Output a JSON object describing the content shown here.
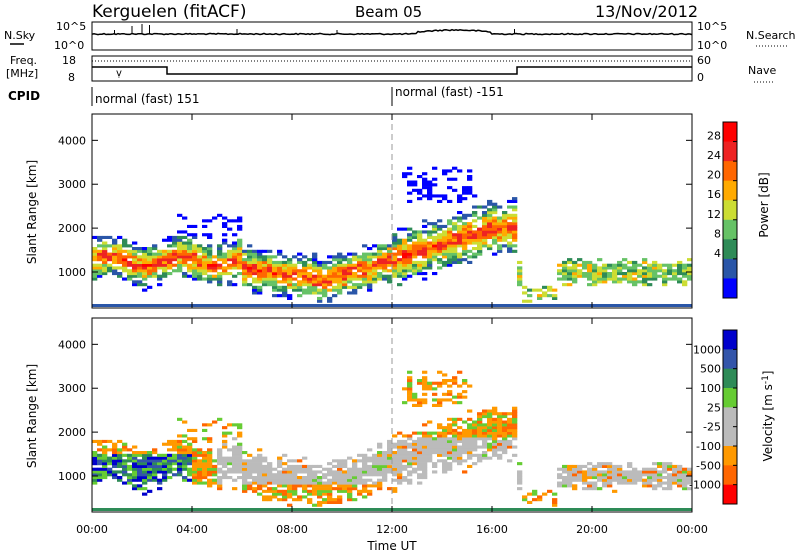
{
  "header": {
    "station": "Kerguelen (fitACF)",
    "beam": "Beam 05",
    "date": "13/Nov/2012"
  },
  "top_panels": {
    "nsky_label": "N.Sky",
    "nsearch_label": "N.Search",
    "nsky_ticks": [
      "10^5",
      "10^0"
    ],
    "nsearch_ticks": [
      "10^5",
      "10^0"
    ],
    "freq_label_1": "Freq.",
    "freq_label_2": "[MHz]",
    "freq_ticks": [
      "18",
      "8"
    ],
    "nave_label": "Nave",
    "nave_ticks": [
      "60",
      "0"
    ],
    "cpid_label": "CPID",
    "cpid_1": "normal (fast) 151",
    "cpid_2": "normal (fast) -151"
  },
  "colors": {
    "power": [
      "#0000ff",
      "#2a56a8",
      "#2e8b57",
      "#66c266",
      "#ccdd33",
      "#ffaa00",
      "#ff6600",
      "#ee2222",
      "#ff0000"
    ],
    "velocity": [
      "#0000cc",
      "#3355aa",
      "#2e8b57",
      "#66cc33",
      "#bbbbbb",
      "#bbbbbb",
      "#ff9900",
      "#ff6600",
      "#ff0000"
    ],
    "ground_scatter": "#bbbbbb"
  },
  "chart_data": [
    {
      "type": "heatmap",
      "name": "power",
      "ylabel": "Slant Range [km]",
      "ylim": [
        180,
        4600
      ],
      "yticks": [
        "4000",
        "3000",
        "2000",
        "1000"
      ],
      "xlim": [
        0,
        24
      ],
      "colorbar_label": "Power [dB]",
      "colorbar_ticks": [
        "28",
        "24",
        "20",
        "16",
        "12",
        "8",
        "4"
      ],
      "colorbar_range": [
        0,
        32
      ]
    },
    {
      "type": "heatmap",
      "name": "velocity",
      "ylabel": "Slant Range [km]",
      "ylim": [
        180,
        4600
      ],
      "yticks": [
        "4000",
        "3000",
        "2000",
        "1000"
      ],
      "xlim": [
        0,
        24
      ],
      "colorbar_label": "Velocity [m s",
      "colorbar_label_sup": "-1",
      "colorbar_label_end": "]",
      "colorbar_ticks": [
        "1000",
        "500",
        "100",
        "25",
        "-25",
        "-100",
        "-500",
        "-1000"
      ]
    }
  ],
  "xaxis": {
    "label": "Time UT",
    "ticks": [
      "00:00",
      "04:00",
      "08:00",
      "12:00",
      "16:00",
      "20:00",
      "00:00"
    ]
  }
}
